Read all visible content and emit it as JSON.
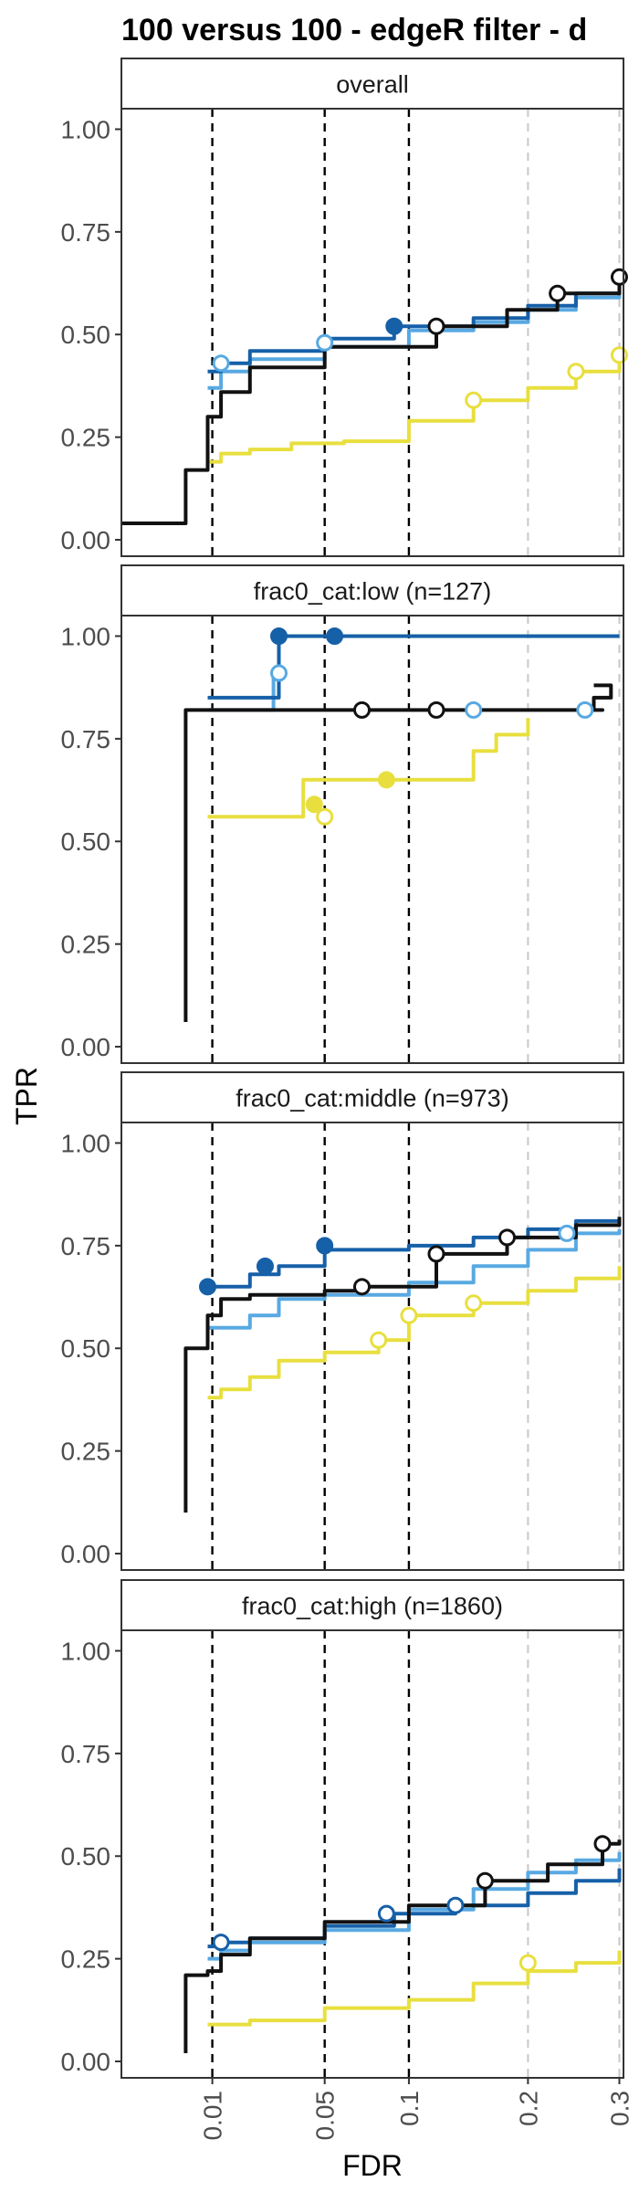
{
  "chart_data": {
    "type": "line",
    "title": "100 versus 100 - edgeR filter - d",
    "xlabel": "FDR",
    "ylabel": "TPR",
    "x_scale": "sqrt",
    "xlim": [
      0,
      0.305
    ],
    "ylim": [
      -0.04,
      1.05
    ],
    "x_ticks": [
      {
        "value": 0.01,
        "label": "0.01"
      },
      {
        "value": 0.05,
        "label": "0.05"
      },
      {
        "value": 0.1,
        "label": "0.1"
      },
      {
        "value": 0.2,
        "label": "0.2"
      },
      {
        "value": 0.3,
        "label": "0.3"
      }
    ],
    "y_ticks": [
      {
        "value": 0,
        "label": "0.00"
      },
      {
        "value": 0.25,
        "label": "0.25"
      },
      {
        "value": 0.5,
        "label": "0.50"
      },
      {
        "value": 0.75,
        "label": "0.75"
      },
      {
        "value": 1,
        "label": "1.00"
      }
    ],
    "fdr_thresholds": [
      0.01,
      0.05,
      0.1
    ],
    "grid_lines_x": [
      0,
      0.2,
      0.3
    ],
    "colors": {
      "dark_blue": "#1660a8",
      "light_blue": "#58a9e2",
      "black": "#111111",
      "yellow": "#e8df3f",
      "threshold": "#000000",
      "grid": "#c8c8c8",
      "strip_bg": "#ffffff"
    },
    "panels": [
      {
        "label": "overall",
        "series": [
          {
            "color": "yellow",
            "points": [
              [
                0.009,
                0.19
              ],
              [
                0.012,
                0.21
              ],
              [
                0.02,
                0.22
              ],
              [
                0.035,
                0.235
              ],
              [
                0.06,
                0.24
              ],
              [
                0.1,
                0.29
              ],
              [
                0.15,
                0.34
              ],
              [
                0.2,
                0.37
              ],
              [
                0.25,
                0.41
              ],
              [
                0.3,
                0.45
              ]
            ]
          },
          {
            "color": "light_blue",
            "points": [
              [
                0.009,
                0.37
              ],
              [
                0.012,
                0.41
              ],
              [
                0.02,
                0.44
              ],
              [
                0.05,
                0.47
              ],
              [
                0.1,
                0.51
              ],
              [
                0.15,
                0.53
              ],
              [
                0.2,
                0.56
              ],
              [
                0.25,
                0.59
              ],
              [
                0.3,
                0.62
              ]
            ]
          },
          {
            "color": "dark_blue",
            "points": [
              [
                0.009,
                0.41
              ],
              [
                0.012,
                0.43
              ],
              [
                0.02,
                0.46
              ],
              [
                0.05,
                0.49
              ],
              [
                0.09,
                0.52
              ],
              [
                0.15,
                0.54
              ],
              [
                0.2,
                0.57
              ],
              [
                0.25,
                0.6
              ],
              [
                0.3,
                0.63
              ]
            ]
          },
          {
            "color": "black",
            "points": [
              [
                0.0,
                0.04
              ],
              [
                0.005,
                0.04
              ],
              [
                0.005,
                0.17
              ],
              [
                0.009,
                0.3
              ],
              [
                0.012,
                0.36
              ],
              [
                0.02,
                0.42
              ],
              [
                0.05,
                0.47
              ],
              [
                0.12,
                0.52
              ],
              [
                0.18,
                0.56
              ],
              [
                0.23,
                0.6
              ],
              [
                0.3,
                0.64
              ]
            ]
          }
        ],
        "markers": [
          {
            "color": "light_blue",
            "x": 0.012,
            "y": 0.43,
            "filled": false
          },
          {
            "color": "light_blue",
            "x": 0.05,
            "y": 0.48,
            "filled": false
          },
          {
            "color": "dark_blue",
            "x": 0.09,
            "y": 0.52,
            "filled": true
          },
          {
            "color": "black",
            "x": 0.12,
            "y": 0.52,
            "filled": false
          },
          {
            "color": "black",
            "x": 0.23,
            "y": 0.6,
            "filled": false
          },
          {
            "color": "black",
            "x": 0.3,
            "y": 0.64,
            "filled": false
          },
          {
            "color": "yellow",
            "x": 0.15,
            "y": 0.34,
            "filled": false
          },
          {
            "color": "yellow",
            "x": 0.25,
            "y": 0.41,
            "filled": false
          },
          {
            "color": "yellow",
            "x": 0.3,
            "y": 0.45,
            "filled": false
          }
        ]
      },
      {
        "label": "frac0_cat:low (n=127)",
        "series": [
          {
            "color": "yellow",
            "points": [
              [
                0.009,
                0.56
              ],
              [
                0.04,
                0.56
              ],
              [
                0.04,
                0.65
              ],
              [
                0.06,
                0.65
              ],
              [
                0.09,
                0.65
              ],
              [
                0.13,
                0.65
              ],
              [
                0.15,
                0.72
              ],
              [
                0.16,
                0.72
              ],
              [
                0.17,
                0.76
              ],
              [
                0.18,
                0.76
              ],
              [
                0.2,
                0.8
              ],
              [
                0.2,
                0.8
              ]
            ]
          },
          {
            "color": "light_blue",
            "points": [
              [
                0.009,
                0.82
              ],
              [
                0.025,
                0.82
              ],
              [
                0.028,
                0.91
              ],
              [
                0.03,
                0.91
              ],
              [
                0.03,
                1.0
              ],
              [
                0.05,
                1.0
              ],
              [
                0.3,
                1.0
              ]
            ]
          },
          {
            "color": "dark_blue",
            "points": [
              [
                0.009,
                0.85
              ],
              [
                0.028,
                0.85
              ],
              [
                0.03,
                1.0
              ],
              [
                0.055,
                1.0
              ],
              [
                0.3,
                1.0
              ]
            ]
          },
          {
            "color": "black",
            "points": [
              [
                0.005,
                0.06
              ],
              [
                0.005,
                0.82
              ],
              [
                0.2,
                0.82
              ],
              [
                0.28,
                0.82
              ],
              [
                0.27,
                0.85
              ],
              [
                0.29,
                0.88
              ],
              [
                0.27,
                0.88
              ]
            ]
          }
        ],
        "markers": [
          {
            "color": "dark_blue",
            "x": 0.03,
            "y": 1.0,
            "filled": true
          },
          {
            "color": "dark_blue",
            "x": 0.055,
            "y": 1.0,
            "filled": true
          },
          {
            "color": "light_blue",
            "x": 0.03,
            "y": 0.91,
            "filled": false
          },
          {
            "color": "light_blue",
            "x": 0.15,
            "y": 0.82,
            "filled": false
          },
          {
            "color": "light_blue",
            "x": 0.26,
            "y": 0.82,
            "filled": false
          },
          {
            "color": "black",
            "x": 0.07,
            "y": 0.82,
            "filled": false
          },
          {
            "color": "black",
            "x": 0.12,
            "y": 0.82,
            "filled": false
          },
          {
            "color": "yellow",
            "x": 0.045,
            "y": 0.59,
            "filled": true
          },
          {
            "color": "yellow",
            "x": 0.085,
            "y": 0.65,
            "filled": true
          },
          {
            "color": "yellow",
            "x": 0.05,
            "y": 0.56,
            "filled": false
          }
        ]
      },
      {
        "label": "frac0_cat:middle (n=973)",
        "series": [
          {
            "color": "yellow",
            "points": [
              [
                0.009,
                0.38
              ],
              [
                0.012,
                0.4
              ],
              [
                0.02,
                0.43
              ],
              [
                0.03,
                0.47
              ],
              [
                0.05,
                0.49
              ],
              [
                0.08,
                0.52
              ],
              [
                0.1,
                0.58
              ],
              [
                0.15,
                0.61
              ],
              [
                0.2,
                0.64
              ],
              [
                0.25,
                0.67
              ],
              [
                0.3,
                0.7
              ]
            ]
          },
          {
            "color": "light_blue",
            "points": [
              [
                0.009,
                0.55
              ],
              [
                0.02,
                0.58
              ],
              [
                0.03,
                0.62
              ],
              [
                0.05,
                0.63
              ],
              [
                0.1,
                0.66
              ],
              [
                0.15,
                0.7
              ],
              [
                0.2,
                0.74
              ],
              [
                0.25,
                0.78
              ],
              [
                0.3,
                0.79
              ]
            ]
          },
          {
            "color": "dark_blue",
            "points": [
              [
                0.009,
                0.65
              ],
              [
                0.02,
                0.68
              ],
              [
                0.03,
                0.7
              ],
              [
                0.05,
                0.74
              ],
              [
                0.1,
                0.75
              ],
              [
                0.15,
                0.77
              ],
              [
                0.2,
                0.79
              ],
              [
                0.25,
                0.81
              ],
              [
                0.3,
                0.82
              ]
            ]
          },
          {
            "color": "black",
            "points": [
              [
                0.005,
                0.1
              ],
              [
                0.005,
                0.5
              ],
              [
                0.009,
                0.58
              ],
              [
                0.012,
                0.62
              ],
              [
                0.02,
                0.63
              ],
              [
                0.05,
                0.64
              ],
              [
                0.07,
                0.65
              ],
              [
                0.12,
                0.73
              ],
              [
                0.18,
                0.77
              ],
              [
                0.25,
                0.8
              ],
              [
                0.3,
                0.82
              ]
            ]
          }
        ],
        "markers": [
          {
            "color": "dark_blue",
            "x": 0.009,
            "y": 0.65,
            "filled": true
          },
          {
            "color": "dark_blue",
            "x": 0.025,
            "y": 0.7,
            "filled": true
          },
          {
            "color": "dark_blue",
            "x": 0.05,
            "y": 0.75,
            "filled": true
          },
          {
            "color": "black",
            "x": 0.07,
            "y": 0.65,
            "filled": false
          },
          {
            "color": "black",
            "x": 0.12,
            "y": 0.73,
            "filled": false
          },
          {
            "color": "black",
            "x": 0.18,
            "y": 0.77,
            "filled": false
          },
          {
            "color": "light_blue",
            "x": 0.24,
            "y": 0.78,
            "filled": false
          },
          {
            "color": "yellow",
            "x": 0.08,
            "y": 0.52,
            "filled": false
          },
          {
            "color": "yellow",
            "x": 0.1,
            "y": 0.58,
            "filled": false
          },
          {
            "color": "yellow",
            "x": 0.15,
            "y": 0.61,
            "filled": false
          }
        ]
      },
      {
        "label": "frac0_cat:high (n=1860)",
        "series": [
          {
            "color": "yellow",
            "points": [
              [
                0.009,
                0.09
              ],
              [
                0.02,
                0.1
              ],
              [
                0.05,
                0.13
              ],
              [
                0.1,
                0.15
              ],
              [
                0.15,
                0.19
              ],
              [
                0.2,
                0.22
              ],
              [
                0.25,
                0.24
              ],
              [
                0.3,
                0.27
              ]
            ]
          },
          {
            "color": "light_blue",
            "points": [
              [
                0.009,
                0.25
              ],
              [
                0.012,
                0.27
              ],
              [
                0.02,
                0.29
              ],
              [
                0.05,
                0.32
              ],
              [
                0.1,
                0.37
              ],
              [
                0.15,
                0.42
              ],
              [
                0.2,
                0.46
              ],
              [
                0.25,
                0.49
              ],
              [
                0.3,
                0.51
              ]
            ]
          },
          {
            "color": "dark_blue",
            "points": [
              [
                0.009,
                0.28
              ],
              [
                0.012,
                0.29
              ],
              [
                0.02,
                0.3
              ],
              [
                0.05,
                0.33
              ],
              [
                0.09,
                0.36
              ],
              [
                0.135,
                0.38
              ],
              [
                0.2,
                0.41
              ],
              [
                0.25,
                0.44
              ],
              [
                0.3,
                0.47
              ]
            ]
          },
          {
            "color": "black",
            "points": [
              [
                0.005,
                0.02
              ],
              [
                0.005,
                0.21
              ],
              [
                0.009,
                0.22
              ],
              [
                0.012,
                0.26
              ],
              [
                0.02,
                0.3
              ],
              [
                0.05,
                0.34
              ],
              [
                0.1,
                0.38
              ],
              [
                0.16,
                0.44
              ],
              [
                0.22,
                0.48
              ],
              [
                0.28,
                0.53
              ],
              [
                0.3,
                0.54
              ]
            ]
          }
        ],
        "markers": [
          {
            "color": "dark_blue",
            "x": 0.012,
            "y": 0.29,
            "filled": false
          },
          {
            "color": "dark_blue",
            "x": 0.085,
            "y": 0.36,
            "filled": false
          },
          {
            "color": "dark_blue",
            "x": 0.135,
            "y": 0.38,
            "filled": false
          },
          {
            "color": "black",
            "x": 0.16,
            "y": 0.44,
            "filled": false
          },
          {
            "color": "black",
            "x": 0.28,
            "y": 0.53,
            "filled": false
          },
          {
            "color": "yellow",
            "x": 0.2,
            "y": 0.24,
            "filled": false
          }
        ]
      }
    ]
  }
}
